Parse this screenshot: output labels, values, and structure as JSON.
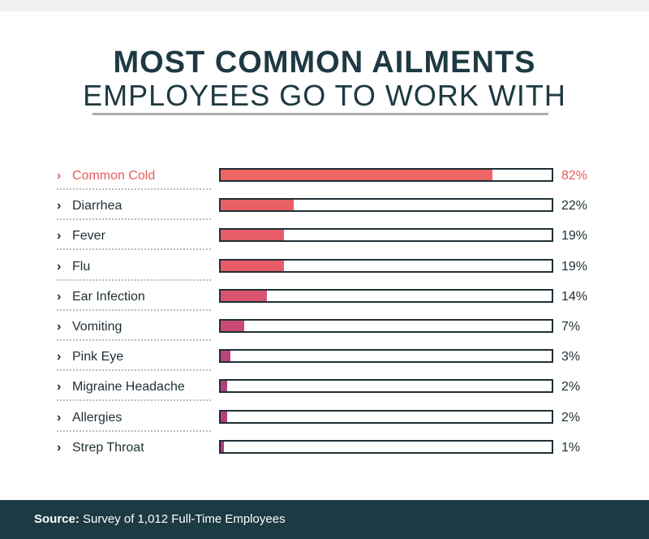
{
  "title_line1": "MOST COMMON AILMENTS",
  "title_line2": "EMPLOYEES GO TO WORK WITH",
  "footer": {
    "source_label": "Source:",
    "source_text": "Survey of 1,012 Full-Time Employees"
  },
  "colors": {
    "highlight": "#e85c5c",
    "dark": "#1f2f35",
    "footer_bg": "#1c3a43"
  },
  "chart_data": {
    "type": "bar",
    "orientation": "horizontal",
    "categories": [
      "Common Cold",
      "Diarrhea",
      "Fever",
      "Flu",
      "Ear Infection",
      "Vomiting",
      "Pink Eye",
      "Migraine Headache",
      "Allergies",
      "Strep Throat"
    ],
    "values": [
      82,
      22,
      19,
      19,
      14,
      7,
      3,
      2,
      2,
      1
    ],
    "value_labels": [
      "82%",
      "22%",
      "19%",
      "19%",
      "14%",
      "7%",
      "3%",
      "2%",
      "2%",
      "1%"
    ],
    "bar_colors": [
      "#ef6464",
      "#ea5f66",
      "#e85c69",
      "#e85c69",
      "#d95470",
      "#c84a75",
      "#bb4479",
      "#b3407b",
      "#b3407b",
      "#a93c7e"
    ],
    "xlim": [
      0,
      100
    ],
    "highlighted": "Common Cold"
  }
}
